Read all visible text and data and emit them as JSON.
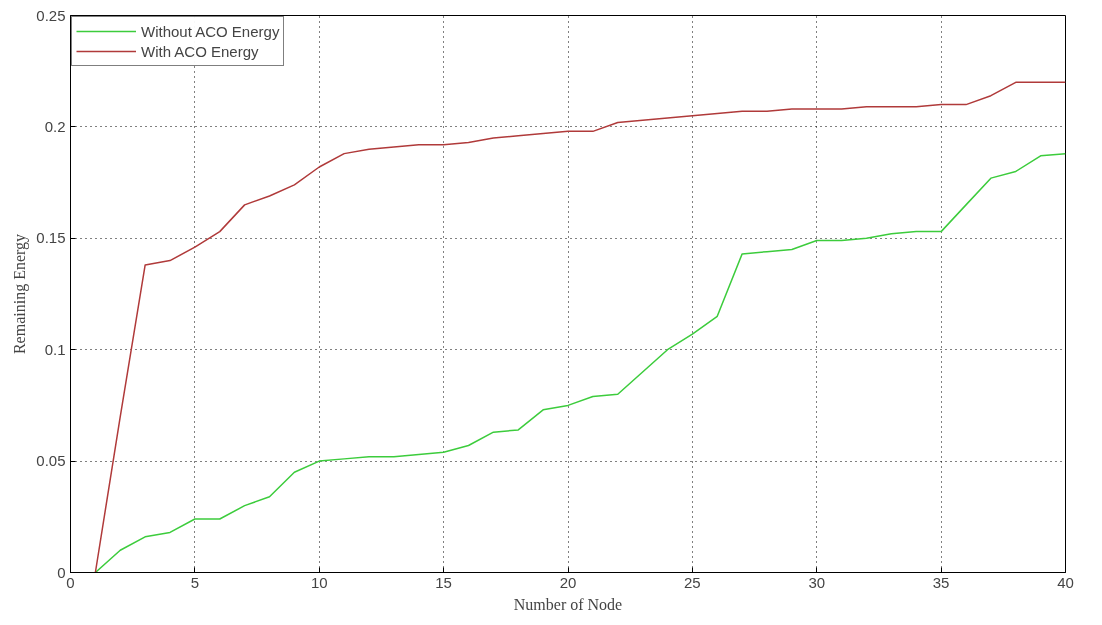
{
  "chart_data": {
    "type": "line",
    "xlabel": "Number of Node",
    "ylabel": "Remaining Energy",
    "x": [
      1,
      2,
      3,
      4,
      5,
      6,
      7,
      8,
      9,
      10,
      11,
      12,
      13,
      14,
      15,
      16,
      17,
      18,
      19,
      20,
      21,
      22,
      23,
      24,
      25,
      26,
      27,
      28,
      29,
      30,
      31,
      32,
      33,
      34,
      35,
      36,
      37,
      38,
      39,
      40
    ],
    "series": [
      {
        "name": "Without ACO Energy",
        "color": "#3ccc3c",
        "values": [
          0,
          0.01,
          0.016,
          0.018,
          0.024,
          0.024,
          0.03,
          0.034,
          0.045,
          0.05,
          0.051,
          0.052,
          0.052,
          0.053,
          0.054,
          0.057,
          0.063,
          0.064,
          0.073,
          0.075,
          0.079,
          0.08,
          0.09,
          0.1,
          0.107,
          0.115,
          0.143,
          0.144,
          0.145,
          0.149,
          0.149,
          0.15,
          0.152,
          0.153,
          0.153,
          0.165,
          0.177,
          0.18,
          0.187,
          0.188
        ]
      },
      {
        "name": "With ACO Energy",
        "color": "#b03a3a",
        "values": [
          0,
          0.07,
          0.138,
          0.14,
          0.146,
          0.153,
          0.165,
          0.169,
          0.174,
          0.182,
          0.188,
          0.19,
          0.191,
          0.192,
          0.192,
          0.193,
          0.195,
          0.196,
          0.197,
          0.198,
          0.198,
          0.202,
          0.203,
          0.204,
          0.205,
          0.206,
          0.207,
          0.207,
          0.208,
          0.208,
          0.208,
          0.209,
          0.209,
          0.209,
          0.21,
          0.21,
          0.214,
          0.22,
          0.22,
          0.22
        ]
      }
    ],
    "xlim": [
      0,
      40
    ],
    "ylim": [
      0,
      0.25
    ],
    "xticks": [
      0,
      5,
      10,
      15,
      20,
      25,
      30,
      35,
      40
    ],
    "yticks": [
      0,
      0.05,
      0.1,
      0.15,
      0.2,
      0.25
    ],
    "grid": true,
    "legend": "top left",
    "line_style": "solid",
    "marker": "none"
  }
}
